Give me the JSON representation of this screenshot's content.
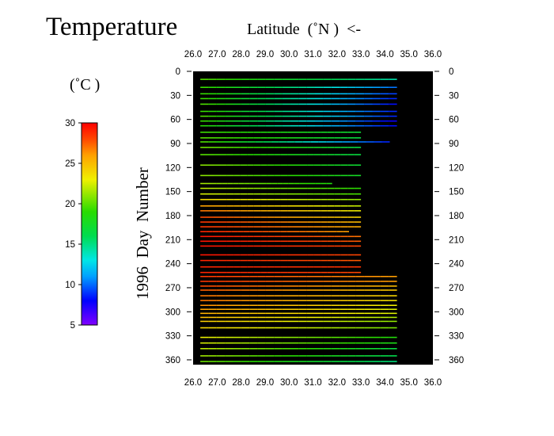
{
  "title": "Temperature",
  "xlabel": "Latitude  (˚N )  <-",
  "unit_label": "(˚C )",
  "ylabel": "1996  Day  Number",
  "colors": {
    "background": "#ffffff",
    "plot_bg": "#000000",
    "axis": "#000000"
  },
  "chart_data": {
    "type": "heatmap",
    "title": "Temperature",
    "xlabel": "Latitude  (˚N )  <-",
    "ylabel": "1996  Day  Number",
    "x_ticks": [
      "26.0",
      "27.0",
      "28.0",
      "29.0",
      "30.0",
      "31.0",
      "32.0",
      "33.0",
      "34.0",
      "35.0",
      "36.0"
    ],
    "y_ticks": [
      "0",
      "30",
      "60",
      "90",
      "120",
      "150",
      "180",
      "210",
      "240",
      "270",
      "300",
      "330",
      "360"
    ],
    "xlim": [
      26.0,
      36.0
    ],
    "ylim": [
      0,
      366
    ],
    "colorbar": {
      "label": "(˚C )",
      "ticks": [
        "5",
        "10",
        "15",
        "20",
        "25",
        "30"
      ],
      "range": [
        5,
        30
      ],
      "colormap": "rainbow"
    },
    "transects": [
      {
        "day": 10,
        "lat_start": 26.3,
        "lat_end": 34.5,
        "t_south": 20.0,
        "t_north": 14.0
      },
      {
        "day": 20,
        "lat_start": 26.3,
        "lat_end": 34.5,
        "t_south": 19.5,
        "t_north": 10.0
      },
      {
        "day": 28,
        "lat_start": 26.3,
        "lat_end": 34.5,
        "t_south": 19.5,
        "t_north": 9.0
      },
      {
        "day": 34,
        "lat_start": 26.3,
        "lat_end": 34.5,
        "t_south": 19.5,
        "t_north": 8.5
      },
      {
        "day": 41,
        "lat_start": 26.3,
        "lat_end": 34.5,
        "t_south": 20.0,
        "t_north": 8.0
      },
      {
        "day": 50,
        "lat_start": 26.3,
        "lat_end": 34.5,
        "t_south": 19.5,
        "t_north": 8.5
      },
      {
        "day": 56,
        "lat_start": 26.3,
        "lat_end": 34.5,
        "t_south": 20.0,
        "t_north": 8.5
      },
      {
        "day": 62,
        "lat_start": 26.3,
        "lat_end": 34.5,
        "t_south": 19.5,
        "t_north": 7.5
      },
      {
        "day": 68,
        "lat_start": 26.3,
        "lat_end": 34.5,
        "t_south": 19.0,
        "t_north": 8.0
      },
      {
        "day": 76,
        "lat_start": 26.3,
        "lat_end": 33.0,
        "t_south": 19.5,
        "t_north": 17.0
      },
      {
        "day": 83,
        "lat_start": 26.3,
        "lat_end": 33.0,
        "t_south": 20.0,
        "t_north": 16.5
      },
      {
        "day": 88,
        "lat_start": 26.3,
        "lat_end": 34.2,
        "t_south": 20.0,
        "t_north": 8.5
      },
      {
        "day": 95,
        "lat_start": 26.3,
        "lat_end": 33.0,
        "t_south": 20.5,
        "t_north": 16.5
      },
      {
        "day": 104,
        "lat_start": 26.3,
        "lat_end": 33.0,
        "t_south": 20.0,
        "t_north": 16.5
      },
      {
        "day": 117,
        "lat_start": 26.3,
        "lat_end": 33.0,
        "t_south": 21.0,
        "t_north": 17.0
      },
      {
        "day": 130,
        "lat_start": 26.3,
        "lat_end": 33.0,
        "t_south": 21.0,
        "t_north": 17.5
      },
      {
        "day": 140,
        "lat_start": 26.3,
        "lat_end": 31.8,
        "t_south": 21.5,
        "t_north": 18.5
      },
      {
        "day": 146,
        "lat_start": 26.3,
        "lat_end": 33.0,
        "t_south": 22.0,
        "t_north": 19.0
      },
      {
        "day": 153,
        "lat_start": 26.3,
        "lat_end": 33.0,
        "t_south": 22.5,
        "t_north": 19.5
      },
      {
        "day": 160,
        "lat_start": 26.3,
        "lat_end": 33.0,
        "t_south": 24.0,
        "t_north": 21.0
      },
      {
        "day": 168,
        "lat_start": 26.3,
        "lat_end": 33.0,
        "t_south": 26.0,
        "t_north": 22.0
      },
      {
        "day": 174,
        "lat_start": 26.3,
        "lat_end": 33.0,
        "t_south": 27.0,
        "t_north": 23.0
      },
      {
        "day": 182,
        "lat_start": 26.3,
        "lat_end": 33.0,
        "t_south": 28.0,
        "t_north": 24.0
      },
      {
        "day": 188,
        "lat_start": 26.3,
        "lat_end": 33.0,
        "t_south": 28.5,
        "t_north": 25.0
      },
      {
        "day": 194,
        "lat_start": 26.3,
        "lat_end": 33.0,
        "t_south": 28.5,
        "t_north": 25.5
      },
      {
        "day": 200,
        "lat_start": 26.3,
        "lat_end": 32.5,
        "t_south": 29.0,
        "t_north": 26.0
      },
      {
        "day": 206,
        "lat_start": 26.3,
        "lat_end": 33.0,
        "t_south": 29.5,
        "t_north": 27.0
      },
      {
        "day": 212,
        "lat_start": 26.3,
        "lat_end": 33.0,
        "t_south": 29.5,
        "t_north": 27.5
      },
      {
        "day": 218,
        "lat_start": 26.3,
        "lat_end": 33.0,
        "t_south": 29.5,
        "t_north": 28.0
      },
      {
        "day": 229,
        "lat_start": 26.3,
        "lat_end": 33.0,
        "t_south": 29.5,
        "t_north": 28.0
      },
      {
        "day": 236,
        "lat_start": 26.3,
        "lat_end": 33.0,
        "t_south": 29.0,
        "t_north": 27.5
      },
      {
        "day": 244,
        "lat_start": 26.3,
        "lat_end": 33.0,
        "t_south": 29.0,
        "t_north": 28.5
      },
      {
        "day": 251,
        "lat_start": 26.3,
        "lat_end": 33.0,
        "t_south": 29.0,
        "t_north": 28.0
      },
      {
        "day": 256,
        "lat_start": 26.3,
        "lat_end": 34.5,
        "t_south": 28.5,
        "t_north": 26.0
      },
      {
        "day": 262,
        "lat_start": 26.3,
        "lat_end": 34.5,
        "t_south": 28.5,
        "t_north": 26.0
      },
      {
        "day": 268,
        "lat_start": 26.3,
        "lat_end": 34.5,
        "t_south": 28.0,
        "t_north": 25.0
      },
      {
        "day": 273,
        "lat_start": 26.3,
        "lat_end": 34.5,
        "t_south": 27.5,
        "t_north": 24.5
      },
      {
        "day": 280,
        "lat_start": 26.3,
        "lat_end": 34.5,
        "t_south": 27.0,
        "t_north": 24.0
      },
      {
        "day": 286,
        "lat_start": 26.3,
        "lat_end": 34.5,
        "t_south": 27.0,
        "t_north": 23.5
      },
      {
        "day": 292,
        "lat_start": 26.3,
        "lat_end": 34.5,
        "t_south": 26.5,
        "t_north": 23.0
      },
      {
        "day": 297,
        "lat_start": 26.3,
        "lat_end": 34.5,
        "t_south": 26.0,
        "t_north": 22.5
      },
      {
        "day": 302,
        "lat_start": 26.3,
        "lat_end": 34.5,
        "t_south": 25.5,
        "t_north": 22.5
      },
      {
        "day": 307,
        "lat_start": 26.3,
        "lat_end": 34.5,
        "t_south": 25.0,
        "t_north": 21.5
      },
      {
        "day": 312,
        "lat_start": 26.3,
        "lat_end": 34.5,
        "t_south": 24.5,
        "t_north": 21.0
      },
      {
        "day": 320,
        "lat_start": 26.3,
        "lat_end": 34.5,
        "t_south": 24.0,
        "t_north": 20.5
      },
      {
        "day": 332,
        "lat_start": 26.3,
        "lat_end": 34.5,
        "t_south": 23.0,
        "t_north": 18.5
      },
      {
        "day": 339,
        "lat_start": 26.3,
        "lat_end": 34.5,
        "t_south": 22.5,
        "t_north": 18.0
      },
      {
        "day": 346,
        "lat_start": 26.3,
        "lat_end": 34.5,
        "t_south": 22.0,
        "t_north": 16.5
      },
      {
        "day": 355,
        "lat_start": 26.3,
        "lat_end": 34.5,
        "t_south": 21.5,
        "t_north": 16.0
      },
      {
        "day": 362,
        "lat_start": 26.3,
        "lat_end": 34.5,
        "t_south": 20.5,
        "t_north": 15.0
      }
    ]
  }
}
